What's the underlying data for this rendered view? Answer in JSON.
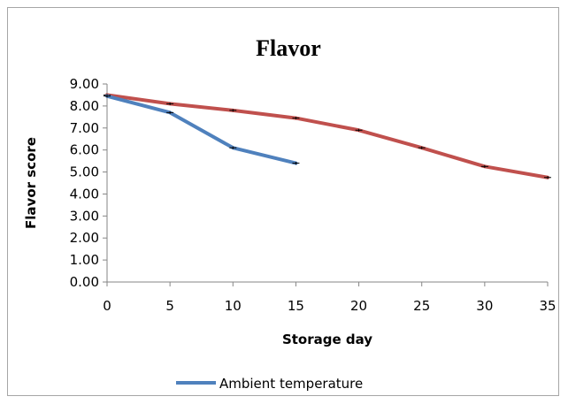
{
  "chart_data": {
    "type": "line",
    "title": "Flavor",
    "xlabel": "Storage day",
    "ylabel": "Flavor score",
    "x": [
      0,
      5,
      10,
      15,
      20,
      25,
      30,
      35
    ],
    "x_ticks": [
      "0",
      "5",
      "10",
      "15",
      "20",
      "25",
      "30",
      "35"
    ],
    "y_ticks": [
      "0.00",
      "1.00",
      "2.00",
      "3.00",
      "4.00",
      "5.00",
      "6.00",
      "7.00",
      "8.00",
      "9.00"
    ],
    "xlim": [
      0,
      35
    ],
    "ylim": [
      0,
      9
    ],
    "grid": false,
    "legend_position": "bottom",
    "series": [
      {
        "name": "Ambient temperature",
        "color": "#4f81bd",
        "x": [
          0,
          5,
          10,
          15
        ],
        "values": [
          8.45,
          7.7,
          6.1,
          5.4
        ],
        "error_bars": true,
        "show_in_legend": true
      },
      {
        "name": "",
        "color": "#c0504d",
        "x": [
          0,
          5,
          10,
          15,
          20,
          25,
          30,
          35
        ],
        "values": [
          8.5,
          8.1,
          7.8,
          7.45,
          6.9,
          6.1,
          5.25,
          4.75
        ],
        "error_bars": true,
        "show_in_legend": false
      }
    ]
  }
}
